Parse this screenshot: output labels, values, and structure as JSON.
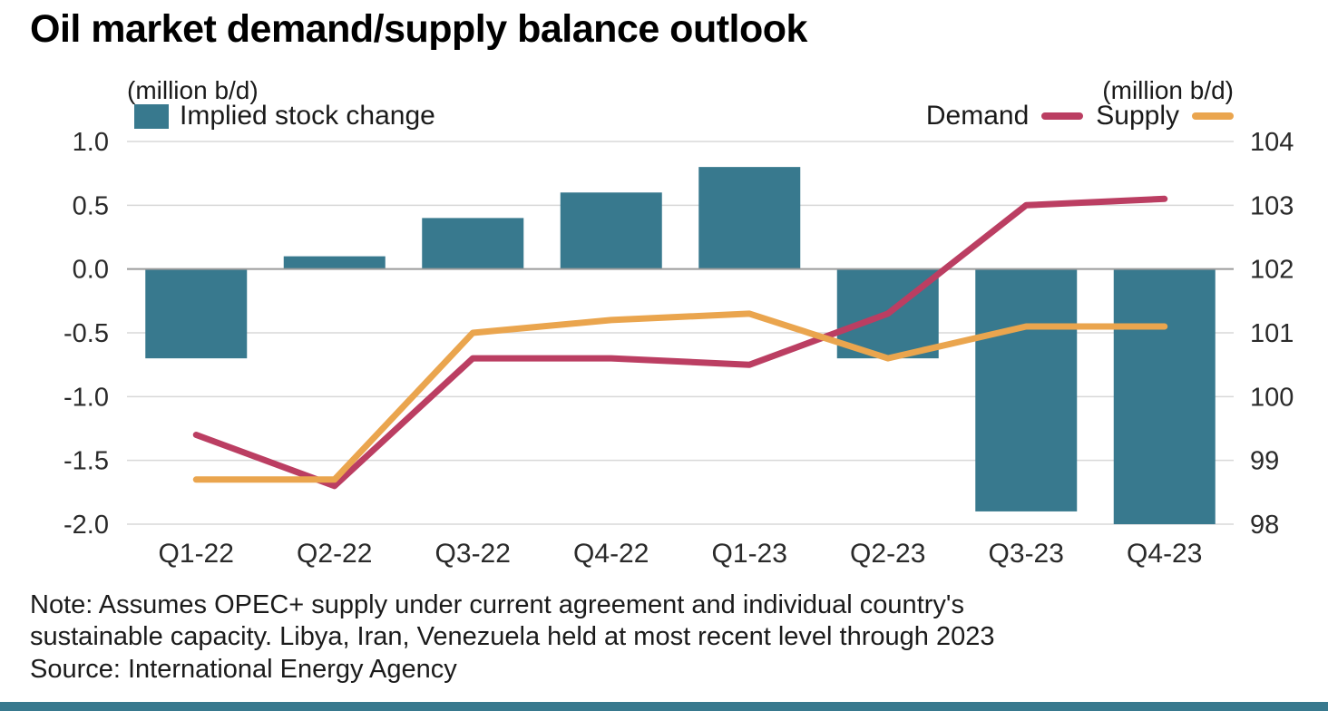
{
  "title": "Oil market demand/supply balance outlook",
  "left_axis_unit": "(million b/d)",
  "right_axis_unit": "(million b/d)",
  "note": "Note: Assumes OPEC+ supply under current agreement and individual country's sustainable capacity. Libya, Iran, Venezuela held at most recent level through 2023",
  "source": "Source: International Energy Agency",
  "colors": {
    "bar": "#38798e",
    "demand": "#bb3e62",
    "supply": "#eaa54e",
    "grid": "#d8d8d8",
    "zero_line": "#9b9b9b",
    "footer": "#38798e"
  },
  "chart_data": {
    "type": "bar",
    "subtype": "combo-bar-line-dual-axis",
    "categories": [
      "Q1-22",
      "Q2-22",
      "Q3-22",
      "Q4-22",
      "Q1-23",
      "Q2-23",
      "Q3-23",
      "Q4-23"
    ],
    "bar_series": {
      "name": "Implied stock change",
      "axis": "left",
      "color": "#38798e",
      "values": [
        -0.7,
        0.1,
        0.4,
        0.6,
        0.8,
        -0.7,
        -1.9,
        -2.0
      ]
    },
    "line_series": [
      {
        "name": "Demand",
        "axis": "right",
        "color": "#bb3e62",
        "values": [
          99.4,
          98.6,
          100.6,
          100.6,
          100.5,
          101.3,
          103.0,
          103.1
        ]
      },
      {
        "name": "Supply",
        "axis": "right",
        "color": "#eaa54e",
        "values": [
          98.7,
          98.7,
          101.0,
          101.2,
          101.3,
          100.6,
          101.1,
          101.1
        ]
      }
    ],
    "left_axis": {
      "label": "(million b/d)",
      "min": -2.0,
      "max": 1.0,
      "ticks": [
        1.0,
        0.5,
        0.0,
        -0.5,
        -1.0,
        -1.5,
        -2.0
      ]
    },
    "right_axis": {
      "label": "(million b/d)",
      "min": 98,
      "max": 104,
      "ticks": [
        104,
        103,
        102,
        101,
        100,
        99,
        98
      ]
    },
    "grid": true,
    "legend_position": "top",
    "title": "Oil market demand/supply balance outlook"
  }
}
